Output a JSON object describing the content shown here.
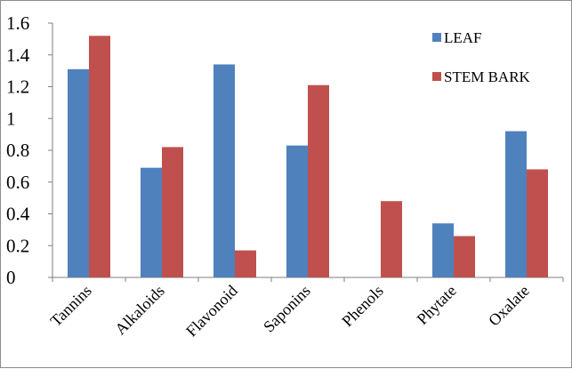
{
  "chart_data": {
    "type": "bar",
    "categories": [
      "Tannins",
      "Alkaloids",
      "Flavonoid",
      "Saponins",
      "Phenols",
      "Phytate",
      "Oxalate"
    ],
    "series": [
      {
        "name": "LEAF",
        "color": "#4f81bd",
        "values": [
          1.31,
          0.69,
          1.34,
          0.83,
          0.0,
          0.34,
          0.92
        ]
      },
      {
        "name": "STEM BARK",
        "color": "#c0504d",
        "values": [
          1.52,
          0.82,
          0.17,
          1.21,
          0.48,
          0.26,
          0.68
        ]
      }
    ],
    "y_ticks": [
      "0",
      "0.2",
      "0.4",
      "0.6",
      "0.8",
      "1",
      "1.2",
      "1.4",
      "1.6"
    ],
    "ylim": [
      0,
      1.6
    ],
    "grid": false,
    "legend_position": "top-right"
  }
}
